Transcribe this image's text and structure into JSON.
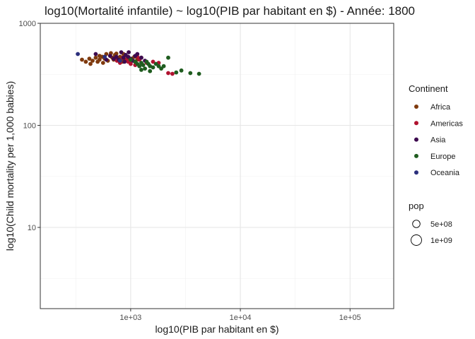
{
  "chart_data": {
    "type": "scatter",
    "title": "log10(Mortalité infantile) ~ log10(PIB par habitant en $) - Année: 1800",
    "xlabel": "log10(PIB par habitant en $)",
    "ylabel": "log10(Child mortality per 1,000 babies)",
    "x_scale": "log10",
    "y_scale": "log10",
    "xlim": [
      150,
      250000
    ],
    "ylim": [
      1.6,
      1000
    ],
    "x_ticks": [
      {
        "value": 1000,
        "label": "1e+03"
      },
      {
        "value": 10000,
        "label": "1e+04"
      },
      {
        "value": 100000,
        "label": "1e+05"
      }
    ],
    "y_ticks": [
      {
        "value": 10,
        "label": "10"
      },
      {
        "value": 100,
        "label": "100"
      },
      {
        "value": 1000,
        "label": "1000"
      }
    ],
    "grid": true,
    "legend_position": "right",
    "color_legend": {
      "title": "Continent",
      "entries": [
        {
          "name": "Africa",
          "color": "#7f3a0e"
        },
        {
          "name": "Americas",
          "color": "#b0122f"
        },
        {
          "name": "Asia",
          "color": "#3d0a4f"
        },
        {
          "name": "Europe",
          "color": "#1f5c1f"
        },
        {
          "name": "Oceania",
          "color": "#2b2f7c"
        }
      ]
    },
    "size_legend": {
      "title": "pop",
      "entries": [
        {
          "label": "5e+08",
          "value": 500000000
        },
        {
          "label": "1e+09",
          "value": 1000000000
        }
      ]
    },
    "series": [
      {
        "name": "Africa",
        "color": "#7f3a0e",
        "points": [
          [
            360,
            440
          ],
          [
            390,
            420
          ],
          [
            420,
            450
          ],
          [
            450,
            430
          ],
          [
            480,
            460
          ],
          [
            500,
            420
          ],
          [
            520,
            440
          ],
          [
            550,
            470
          ],
          [
            580,
            450
          ],
          [
            600,
            500
          ],
          [
            620,
            430
          ],
          [
            650,
            480
          ],
          [
            680,
            460
          ],
          [
            700,
            440
          ],
          [
            720,
            490
          ],
          [
            750,
            460
          ],
          [
            780,
            430
          ],
          [
            800,
            470
          ],
          [
            830,
            450
          ],
          [
            850,
            420
          ],
          [
            870,
            480
          ],
          [
            900,
            440
          ],
          [
            940,
            460
          ],
          [
            980,
            430
          ],
          [
            1020,
            450
          ],
          [
            1080,
            470
          ],
          [
            1150,
            440
          ],
          [
            1250,
            460
          ],
          [
            430,
            400
          ],
          [
            560,
            410
          ],
          [
            660,
            510
          ],
          [
            740,
            505
          ],
          [
            860,
            500
          ],
          [
            1100,
            420
          ],
          [
            520,
            480
          ]
        ]
      },
      {
        "name": "Americas",
        "color": "#b0122f",
        "points": [
          [
            700,
            450
          ],
          [
            750,
            430
          ],
          [
            800,
            410
          ],
          [
            850,
            460
          ],
          [
            900,
            440
          ],
          [
            950,
            420
          ],
          [
            1000,
            400
          ],
          [
            1050,
            430
          ],
          [
            1100,
            390
          ],
          [
            1200,
            440
          ],
          [
            1400,
            410
          ],
          [
            1600,
            420
          ],
          [
            2200,
            325
          ],
          [
            2400,
            320
          ],
          [
            1800,
            410
          ],
          [
            1150,
            470
          ]
        ]
      },
      {
        "name": "Asia",
        "color": "#3d0a4f",
        "points": [
          [
            480,
            500
          ],
          [
            650,
            480
          ],
          [
            700,
            450
          ],
          [
            740,
            470
          ],
          [
            780,
            440
          ],
          [
            820,
            520
          ],
          [
            860,
            460
          ],
          [
            900,
            490
          ],
          [
            950,
            470
          ],
          [
            1000,
            450
          ],
          [
            1050,
            430
          ],
          [
            1100,
            480
          ],
          [
            1150,
            500
          ],
          [
            1250,
            460
          ],
          [
            1350,
            430
          ],
          [
            600,
            440
          ],
          [
            880,
            420
          ],
          [
            960,
            520
          ]
        ]
      },
      {
        "name": "Europe",
        "color": "#1f5c1f",
        "points": [
          [
            1000,
            440
          ],
          [
            1100,
            420
          ],
          [
            1150,
            400
          ],
          [
            1200,
            380
          ],
          [
            1250,
            410
          ],
          [
            1300,
            390
          ],
          [
            1350,
            360
          ],
          [
            1400,
            420
          ],
          [
            1450,
            400
          ],
          [
            1500,
            380
          ],
          [
            1600,
            370
          ],
          [
            1700,
            400
          ],
          [
            1800,
            380
          ],
          [
            1900,
            360
          ],
          [
            2000,
            380
          ],
          [
            2200,
            460
          ],
          [
            2600,
            330
          ],
          [
            2900,
            345
          ],
          [
            3500,
            325
          ],
          [
            4200,
            320
          ],
          [
            1250,
            350
          ],
          [
            1500,
            340
          ]
        ]
      },
      {
        "name": "Oceania",
        "color": "#2b2f7c",
        "points": [
          [
            330,
            500
          ],
          [
            580,
            470
          ],
          [
            800,
            430
          ]
        ]
      }
    ]
  }
}
